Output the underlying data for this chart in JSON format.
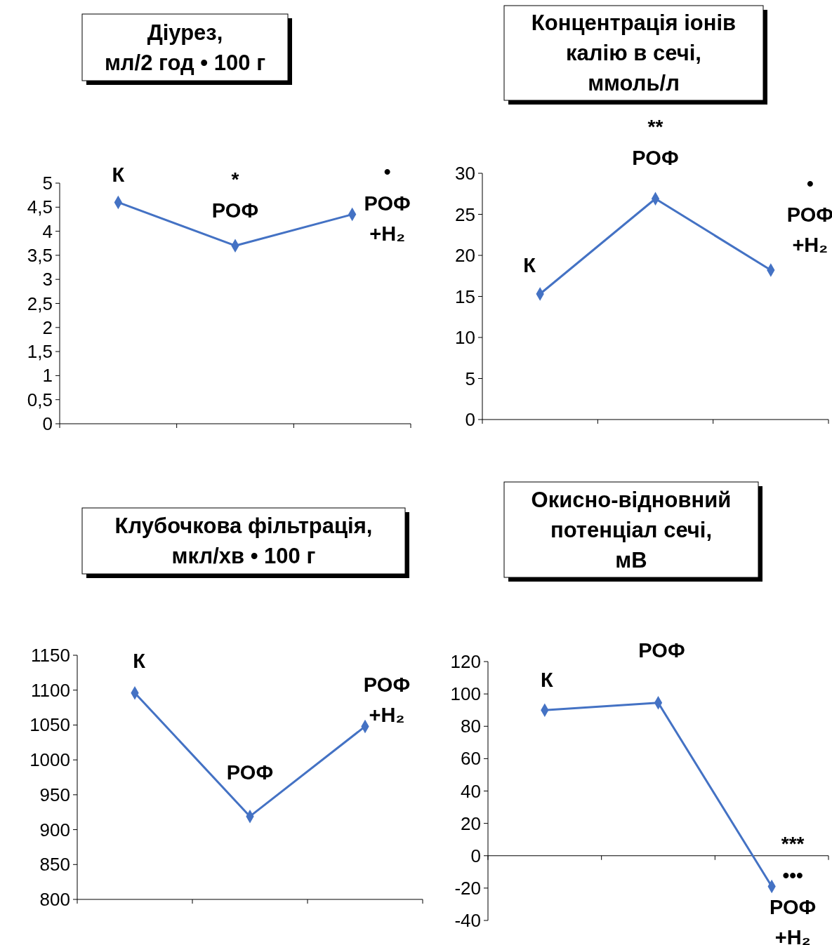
{
  "chart_data": [
    {
      "type": "line",
      "title": "Діурез,\nмл/2 год • 100 г",
      "categories": [
        "К",
        "РОФ",
        "РОФ\n+H₂"
      ],
      "series": [
        {
          "color": "#4472c4",
          "values": [
            4.6,
            3.7,
            4.35
          ]
        }
      ],
      "marker": "diamond",
      "ylim": [
        0,
        5
      ],
      "yticks": [
        0,
        {
          "value": 0.5,
          "label": "0,5"
        },
        1,
        {
          "value": 1.5,
          "label": "1,5"
        },
        2,
        {
          "value": 2.5,
          "label": "2,5"
        },
        3,
        {
          "value": 3.5,
          "label": "3,5"
        },
        4,
        {
          "value": 4.5,
          "label": "4,5"
        },
        5
      ],
      "annotations": [
        "*",
        "•"
      ]
    },
    {
      "type": "line",
      "title": "Концентрація іонів\nкалію в сечі,\nммоль/л",
      "categories": [
        "К",
        "РОФ",
        "РОФ\n+H₂"
      ],
      "series": [
        {
          "color": "#4472c4",
          "values": [
            15.3,
            26.9,
            18.2
          ]
        }
      ],
      "marker": "diamond",
      "ylim": [
        0,
        30
      ],
      "yticks": [
        0,
        5,
        10,
        15,
        20,
        25,
        30
      ],
      "annotations": [
        "**",
        "•"
      ]
    },
    {
      "type": "line",
      "title": "Клубочкова фільтрація,\nмкл/хв • 100 г",
      "categories": [
        "К",
        "РОФ",
        "РОФ\n+H₂"
      ],
      "series": [
        {
          "color": "#4472c4",
          "values": [
            1096,
            919,
            1048
          ]
        }
      ],
      "marker": "diamond",
      "ylim": [
        800,
        1150
      ],
      "yticks": [
        800,
        850,
        900,
        950,
        1000,
        1050,
        1100,
        1150
      ]
    },
    {
      "type": "line",
      "title": "Окисно-відновний\nпотенціал сечі,\nмВ",
      "categories": [
        "К",
        "РОФ",
        "РОФ\n+H₂"
      ],
      "series": [
        {
          "color": "#4472c4",
          "values": [
            90,
            94.5,
            -19
          ]
        }
      ],
      "marker": "diamond",
      "ylim": [
        -40,
        120
      ],
      "yticks": [
        -40,
        -20,
        0,
        20,
        40,
        60,
        80,
        100,
        120
      ],
      "annotations": [
        "***",
        "•••"
      ]
    }
  ]
}
